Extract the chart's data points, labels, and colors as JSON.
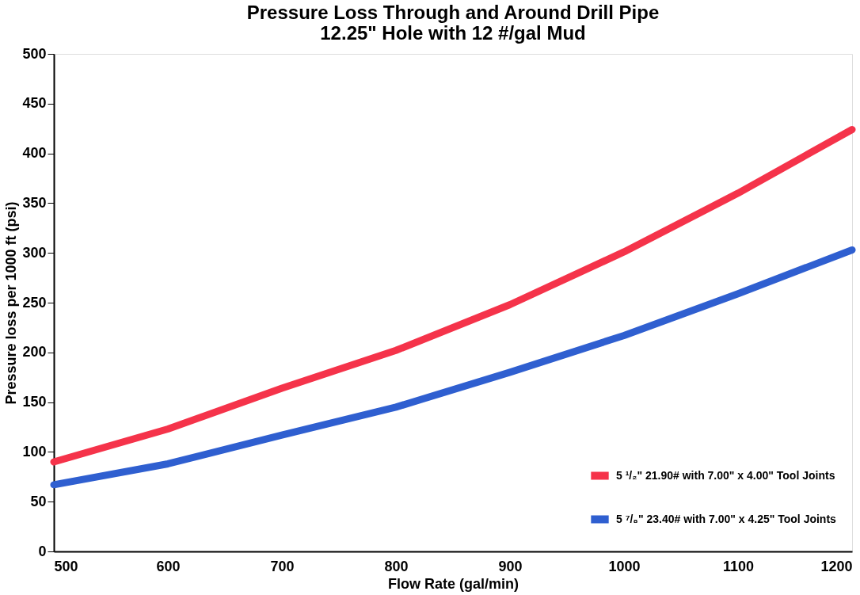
{
  "chart_data": {
    "type": "line",
    "title": [
      "Pressure Loss Through and Around Drill Pipe",
      "12.25\" Hole with 12 #/gal Mud"
    ],
    "xlabel": "Flow Rate (gal/min)",
    "ylabel": "Pressure loss per 1000 ft (psi)",
    "x": [
      500,
      600,
      700,
      800,
      900,
      1000,
      1100,
      1200
    ],
    "series": [
      {
        "name": "5 ¹/₂\" 21.90# with 7.00\" x 4.00\" Tool Joints",
        "color": "#f5334a",
        "values": [
          90,
          123,
          164,
          202,
          248,
          301,
          360,
          424
        ]
      },
      {
        "name": "5 ⁷/₈\" 23.40# with 7.00\" x 4.25\" Tool Joints",
        "color": "#2f5fd0",
        "values": [
          67,
          88,
          117,
          145,
          180,
          217,
          259,
          303
        ]
      }
    ],
    "xlim": [
      500,
      1200
    ],
    "xticks": [
      500,
      600,
      700,
      800,
      900,
      1000,
      1100,
      1200
    ],
    "ylim": [
      0,
      500
    ],
    "yticks": [
      0,
      50,
      100,
      150,
      200,
      250,
      300,
      350,
      400,
      450,
      500
    ],
    "grid": false,
    "legend": "bottom right",
    "marker": "none",
    "line_style": "solid"
  }
}
